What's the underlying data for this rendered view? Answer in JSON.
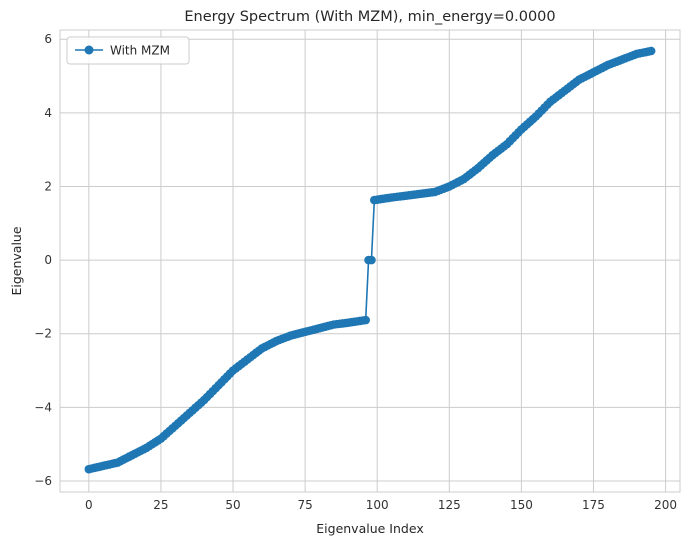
{
  "chart_data": {
    "type": "line",
    "title": "Energy Spectrum (With MZM), min_energy=0.0000",
    "xlabel": "Eigenvalue Index",
    "ylabel": "Eigenvalue",
    "xlim": [
      -10,
      205
    ],
    "ylim": [
      -6.3,
      6.25
    ],
    "xticks": [
      0,
      25,
      50,
      75,
      100,
      125,
      150,
      175,
      200
    ],
    "yticks": [
      -6,
      -4,
      -2,
      0,
      2,
      4,
      6
    ],
    "grid": true,
    "legend": "top-left",
    "series": [
      {
        "name": "With MZM",
        "color": "#1f77b4",
        "marker": "circle",
        "count": 196,
        "knots_negative": [
          [
            0,
            -5.68
          ],
          [
            10,
            -5.5
          ],
          [
            20,
            -5.1
          ],
          [
            25,
            -4.85
          ],
          [
            30,
            -4.5
          ],
          [
            35,
            -4.15
          ],
          [
            40,
            -3.8
          ],
          [
            45,
            -3.4
          ],
          [
            50,
            -3.0
          ],
          [
            55,
            -2.7
          ],
          [
            60,
            -2.4
          ],
          [
            65,
            -2.2
          ],
          [
            70,
            -2.05
          ],
          [
            75,
            -1.95
          ],
          [
            80,
            -1.85
          ],
          [
            85,
            -1.75
          ],
          [
            90,
            -1.7
          ],
          [
            96,
            -1.63
          ]
        ],
        "zero_modes": [
          [
            97,
            0.0
          ],
          [
            98,
            0.0
          ]
        ],
        "knots_positive": [
          [
            99,
            1.63
          ],
          [
            105,
            1.7
          ],
          [
            110,
            1.75
          ],
          [
            115,
            1.8
          ],
          [
            120,
            1.85
          ],
          [
            125,
            2.0
          ],
          [
            130,
            2.2
          ],
          [
            135,
            2.5
          ],
          [
            140,
            2.85
          ],
          [
            145,
            3.15
          ],
          [
            150,
            3.55
          ],
          [
            155,
            3.9
          ],
          [
            160,
            4.3
          ],
          [
            165,
            4.6
          ],
          [
            170,
            4.9
          ],
          [
            175,
            5.1
          ],
          [
            180,
            5.3
          ],
          [
            185,
            5.45
          ],
          [
            190,
            5.6
          ],
          [
            195,
            5.68
          ]
        ]
      }
    ]
  }
}
